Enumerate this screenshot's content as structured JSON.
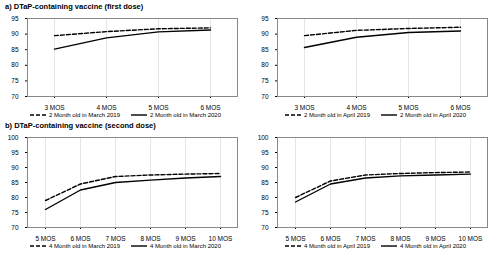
{
  "chart_data": [
    {
      "type": "line",
      "title": "a) DTaP-containing vaccine (first dose)",
      "categories": [
        "3 MOS",
        "4 MOS",
        "5 MOS",
        "6 MOS"
      ],
      "series": [
        {
          "name": "2 Month old in March 2019",
          "color": "#000000",
          "line_style": "dashed",
          "values": [
            89.5,
            90.8,
            91.7,
            92.0
          ]
        },
        {
          "name": "2 Month old in March 2020",
          "color": "#000000",
          "line_style": "solid",
          "values": [
            85.2,
            88.8,
            90.7,
            91.3
          ]
        }
      ],
      "ylim": [
        70,
        95
      ],
      "yticks": [
        70,
        75,
        80,
        85,
        90,
        95
      ],
      "grid": true
    },
    {
      "type": "line",
      "categories": [
        "3 MOS",
        "4 MOS",
        "5 MOS",
        "6 MOS"
      ],
      "series": [
        {
          "name": "2 Month old in April 2019",
          "color": "#000000",
          "line_style": "dashed",
          "values": [
            89.5,
            91.2,
            91.8,
            92.2
          ]
        },
        {
          "name": "2 Month old in April 2020",
          "color": "#000000",
          "line_style": "solid",
          "values": [
            85.7,
            89.0,
            90.5,
            91.0
          ]
        }
      ],
      "ylim": [
        70,
        95
      ],
      "yticks": [
        70,
        75,
        80,
        85,
        90,
        95
      ],
      "grid": true
    },
    {
      "type": "line",
      "title": "b) DTaP-containing vaccine (second dose)",
      "categories": [
        "5 MOS",
        "6 MOS",
        "7 MOS",
        "8 MOS",
        "9 MOS",
        "10 MOS"
      ],
      "series": [
        {
          "name": "4 Month old in March 2019",
          "color": "#000000",
          "line_style": "dashed",
          "values": [
            79.0,
            84.5,
            87.0,
            87.5,
            87.8,
            88.0
          ]
        },
        {
          "name": "4 Month old in March 2020",
          "color": "#000000",
          "line_style": "solid",
          "values": [
            76.0,
            82.5,
            85.0,
            85.8,
            86.5,
            87.0
          ]
        }
      ],
      "ylim": [
        70,
        100
      ],
      "yticks": [
        70,
        75,
        80,
        85,
        90,
        95,
        100
      ],
      "grid": true
    },
    {
      "type": "line",
      "categories": [
        "5 MOS",
        "6 MOS",
        "7 MOS",
        "8 MOS",
        "9 MOS",
        "10 MOS"
      ],
      "series": [
        {
          "name": "4 Month old in April 2019",
          "color": "#000000",
          "line_style": "dashed",
          "values": [
            80.0,
            85.5,
            87.5,
            88.0,
            88.3,
            88.5
          ]
        },
        {
          "name": "4 Month old in April 2020",
          "color": "#000000",
          "line_style": "solid",
          "values": [
            78.5,
            84.5,
            86.5,
            87.2,
            87.5,
            87.8
          ]
        }
      ],
      "ylim": [
        70,
        100
      ],
      "yticks": [
        70,
        75,
        80,
        85,
        90,
        95,
        100
      ],
      "grid": true
    }
  ]
}
